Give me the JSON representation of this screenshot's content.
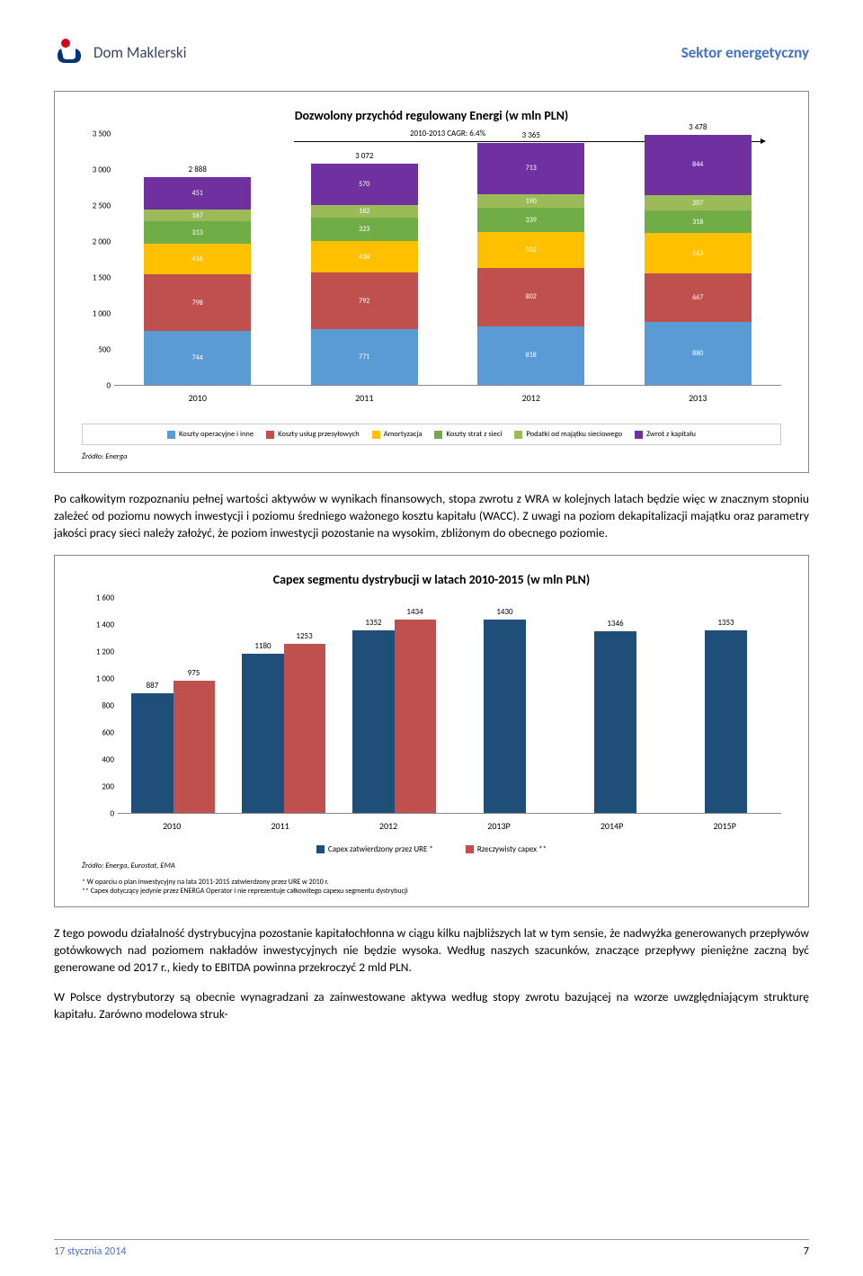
{
  "header": {
    "logo_text": "Dom Maklerski",
    "sector": "Sektor energetyczny"
  },
  "chart1": {
    "title": "Dozwolony przychód regulowany Energi (w mln PLN)",
    "type": "stacked-bar",
    "cagr_label": "2010-2013 CAGR: 6.4%",
    "ymax": 3500,
    "ytick_step": 500,
    "yticks": [
      "0",
      "500",
      "1 000",
      "1 500",
      "2 000",
      "2 500",
      "3 000",
      "3 500"
    ],
    "categories": [
      "2010",
      "2011",
      "2012",
      "2013"
    ],
    "totals": [
      "2 888",
      "3 072",
      "3 365",
      "3 478"
    ],
    "series": [
      {
        "name": "Koszty operacyjne i inne",
        "color": "#5b9bd5",
        "values": [
          744,
          771,
          818,
          880
        ]
      },
      {
        "name": "Koszty usług przesyłowych",
        "color": "#c0504d",
        "values": [
          798,
          792,
          802,
          667
        ]
      },
      {
        "name": "Amortyzacja",
        "color": "#ffc000",
        "values": [
          416,
          434,
          502,
          563
        ]
      },
      {
        "name": "Koszty strat z sieci",
        "color": "#70ad47",
        "values": [
          313,
          323,
          339,
          318
        ]
      },
      {
        "name": "Podatki od majątku sieciowego",
        "color": "#9bbb59",
        "values": [
          167,
          182,
          190,
          207
        ]
      },
      {
        "name": "Zwrot z kapitału",
        "color": "#7030a0",
        "values": [
          451,
          570,
          713,
          844
        ]
      }
    ],
    "source": "Źródło: Energa"
  },
  "para1": "Po całkowitym rozpoznaniu pełnej wartości aktywów w wynikach finansowych, stopa zwrotu z WRA w kolejnych latach będzie więc w znacznym stopniu zależeć od poziomu nowych inwestycji i poziomu średniego ważonego kosztu kapitału (WACC). Z uwagi na poziom dekapitalizacji majątku oraz parametry jakości pracy sieci należy założyć, że poziom inwestycji pozostanie na wysokim, zbliżonym do obecnego poziomie.",
  "chart2": {
    "title": "Capex segmentu dystrybucji w latach 2010-2015 (w mln PLN)",
    "type": "grouped-bar",
    "ymax": 1600,
    "ytick_step": 200,
    "yticks": [
      "0",
      "200",
      "400",
      "600",
      "800",
      "1 000",
      "1 200",
      "1 400",
      "1 600"
    ],
    "categories": [
      "2010",
      "2011",
      "2012",
      "2013P",
      "2014P",
      "2015P"
    ],
    "series": [
      {
        "name": "Capex zatwierdzony przez URE *",
        "color": "#1f4e79",
        "values": [
          887,
          1180,
          1352,
          1430,
          1346,
          1353
        ]
      },
      {
        "name": "Rzeczywisty capex **",
        "color": "#c0504d",
        "values": [
          975,
          1253,
          1434,
          null,
          null,
          null
        ]
      }
    ],
    "source": "Źródło: Energa, Eurostat, EMA",
    "footnote1": "* W oparciu o plan inwestycyjny na lata 2011-2015 zatwierdzony przez URE w 2010 r.",
    "footnote2": "** Capex dotyczący jedynie przez ENERGA Operator i nie reprezentuje całkowitego capexu segmentu dystrybucji"
  },
  "para2": "Z tego powodu działalność dystrybucyjna pozostanie kapitałochłonna w ciągu kilku najbliższych lat w tym sensie, że nadwyżka generowanych przepływów gotówkowych nad poziomem nakładów inwestycyjnych nie będzie wysoka. Według naszych szacunków, znaczące przepływy pieniężne zaczną być generowane od 2017 r., kiedy to EBITDA powinna przekroczyć 2 mld PLN.",
  "para3": "W Polsce dystrybutorzy są obecnie wynagradzani za zainwestowane aktywa według stopy zwrotu bazującej na wzorze uwzględniającym strukturę kapitału. Zarówno modelowa struk-",
  "footer": {
    "date": "17 stycznia 2014",
    "page": "7"
  },
  "colors": {
    "blue_brand": "#4472c4",
    "logo_blue": "#003574",
    "logo_red": "#d6001c"
  }
}
